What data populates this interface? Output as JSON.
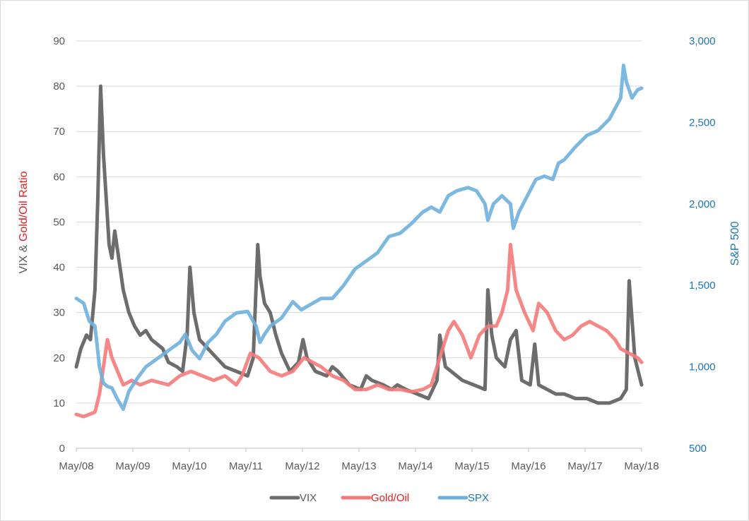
{
  "chart_data": {
    "type": "line",
    "title": "",
    "colors": {
      "vix": "#6d6d6d",
      "gold_oil": "#f47a7a",
      "spx": "#6fb0dd",
      "left_label_dark": "#595959",
      "left_label_red": "#e02020",
      "right_axis": "#1a75bb"
    },
    "ylabel_left_part1": "VIX & ",
    "ylabel_left_part2": "Gold/Oil Ratio",
    "ylabel_right": "S&P 500",
    "ylim_left": [
      0,
      90
    ],
    "ylim_right": [
      500,
      3000
    ],
    "y_ticks_left": [
      "0",
      "10",
      "20",
      "30",
      "40",
      "50",
      "60",
      "70",
      "80",
      "90"
    ],
    "y_ticks_right": [
      "500",
      "1,000",
      "1,500",
      "2,000",
      "2,500",
      "3,000"
    ],
    "x_ticks": [
      "May/08",
      "May/09",
      "May/10",
      "May/11",
      "May/12",
      "May/13",
      "May/14",
      "May/15",
      "May/16",
      "May/17",
      "May/18"
    ],
    "x_range": [
      2008.37,
      2018.37
    ],
    "legend_placement": "bottom",
    "series": [
      {
        "name": "VIX",
        "axis": "left",
        "x": [
          2008.37,
          2008.45,
          2008.55,
          2008.62,
          2008.7,
          2008.75,
          2008.8,
          2008.85,
          2008.9,
          2008.95,
          2009.0,
          2009.05,
          2009.12,
          2009.2,
          2009.3,
          2009.4,
          2009.5,
          2009.6,
          2009.7,
          2009.8,
          2009.9,
          2010.0,
          2010.15,
          2010.25,
          2010.33,
          2010.38,
          2010.45,
          2010.55,
          2010.7,
          2010.85,
          2011.0,
          2011.2,
          2011.4,
          2011.5,
          2011.58,
          2011.62,
          2011.7,
          2011.8,
          2011.9,
          2012.0,
          2012.15,
          2012.3,
          2012.38,
          2012.45,
          2012.6,
          2012.8,
          2012.9,
          2013.0,
          2013.2,
          2013.4,
          2013.5,
          2013.6,
          2013.8,
          2013.95,
          2014.05,
          2014.2,
          2014.4,
          2014.6,
          2014.75,
          2014.8,
          2014.9,
          2015.0,
          2015.2,
          2015.4,
          2015.6,
          2015.65,
          2015.72,
          2015.8,
          2015.95,
          2016.05,
          2016.15,
          2016.25,
          2016.4,
          2016.48,
          2016.55,
          2016.7,
          2016.85,
          2017.0,
          2017.2,
          2017.4,
          2017.6,
          2017.8,
          2018.0,
          2018.1,
          2018.15,
          2018.25,
          2018.37
        ],
        "values": [
          18,
          22,
          25,
          24,
          35,
          55,
          80,
          65,
          55,
          45,
          42,
          48,
          42,
          35,
          30,
          27,
          25,
          26,
          24,
          23,
          22,
          19,
          18,
          17,
          25,
          40,
          30,
          24,
          22,
          20,
          18,
          17,
          16,
          20,
          45,
          38,
          32,
          30,
          25,
          21,
          17,
          19,
          24,
          20,
          17,
          16,
          18,
          17,
          14,
          13,
          16,
          15,
          14,
          13,
          14,
          13,
          12,
          11,
          15,
          25,
          18,
          17,
          15,
          14,
          13,
          35,
          25,
          20,
          18,
          24,
          26,
          15,
          14,
          23,
          14,
          13,
          12,
          12,
          11,
          11,
          10,
          10,
          11,
          13,
          37,
          20,
          14
        ]
      },
      {
        "name": "Gold/Oil",
        "axis": "left",
        "x": [
          2008.37,
          2008.5,
          2008.6,
          2008.7,
          2008.78,
          2008.85,
          2008.92,
          2009.0,
          2009.1,
          2009.2,
          2009.35,
          2009.5,
          2009.7,
          2009.85,
          2010.0,
          2010.2,
          2010.4,
          2010.6,
          2010.8,
          2011.0,
          2011.2,
          2011.3,
          2011.45,
          2011.6,
          2011.8,
          2012.0,
          2012.2,
          2012.4,
          2012.55,
          2012.7,
          2012.9,
          2013.1,
          2013.3,
          2013.5,
          2013.7,
          2013.9,
          2014.1,
          2014.3,
          2014.5,
          2014.65,
          2014.8,
          2014.95,
          2015.05,
          2015.2,
          2015.35,
          2015.5,
          2015.65,
          2015.8,
          2015.9,
          2016.0,
          2016.05,
          2016.15,
          2016.3,
          2016.45,
          2016.55,
          2016.7,
          2016.85,
          2017.0,
          2017.15,
          2017.3,
          2017.45,
          2017.6,
          2017.75,
          2017.9,
          2018.0,
          2018.15,
          2018.3,
          2018.37
        ],
        "values": [
          7.5,
          7,
          7.5,
          8,
          12,
          18,
          24,
          20,
          17,
          14,
          15,
          14,
          15,
          14.5,
          14,
          16,
          17,
          16,
          15,
          16,
          14,
          16,
          21,
          20,
          17,
          16,
          17,
          20,
          19,
          18,
          16,
          15,
          13,
          13,
          14,
          13,
          13,
          12.5,
          13,
          14,
          20,
          26,
          28,
          25,
          20,
          25,
          27,
          27,
          30,
          35,
          45,
          35,
          30,
          26,
          32,
          30,
          26,
          24,
          25,
          27,
          28,
          27,
          26,
          24,
          22,
          21,
          20,
          19
        ]
      },
      {
        "name": "SPX",
        "axis": "right",
        "x": [
          2008.37,
          2008.5,
          2008.6,
          2008.7,
          2008.78,
          2008.85,
          2008.92,
          2009.0,
          2009.1,
          2009.2,
          2009.3,
          2009.45,
          2009.6,
          2009.8,
          2010.0,
          2010.2,
          2010.3,
          2010.42,
          2010.55,
          2010.7,
          2010.85,
          2011.0,
          2011.2,
          2011.4,
          2011.55,
          2011.62,
          2011.7,
          2011.8,
          2012.0,
          2012.2,
          2012.35,
          2012.5,
          2012.7,
          2012.9,
          2013.1,
          2013.3,
          2013.5,
          2013.7,
          2013.9,
          2014.1,
          2014.3,
          2014.5,
          2014.65,
          2014.8,
          2014.95,
          2015.1,
          2015.3,
          2015.45,
          2015.6,
          2015.65,
          2015.75,
          2015.9,
          2016.05,
          2016.1,
          2016.2,
          2016.35,
          2016.5,
          2016.65,
          2016.8,
          2016.9,
          2017.0,
          2017.2,
          2017.4,
          2017.6,
          2017.8,
          2018.0,
          2018.05,
          2018.1,
          2018.2,
          2018.3,
          2018.37
        ],
        "values": [
          1420,
          1390,
          1280,
          1250,
          1000,
          900,
          880,
          870,
          800,
          740,
          850,
          930,
          1000,
          1050,
          1100,
          1150,
          1200,
          1100,
          1050,
          1150,
          1200,
          1280,
          1330,
          1340,
          1250,
          1150,
          1200,
          1250,
          1300,
          1400,
          1350,
          1380,
          1420,
          1420,
          1500,
          1600,
          1650,
          1700,
          1800,
          1820,
          1880,
          1950,
          1980,
          1950,
          2050,
          2080,
          2100,
          2080,
          2000,
          1900,
          2000,
          2050,
          2000,
          1850,
          1950,
          2050,
          2150,
          2170,
          2150,
          2250,
          2270,
          2350,
          2420,
          2450,
          2520,
          2650,
          2850,
          2750,
          2650,
          2700,
          2710
        ]
      }
    ]
  }
}
